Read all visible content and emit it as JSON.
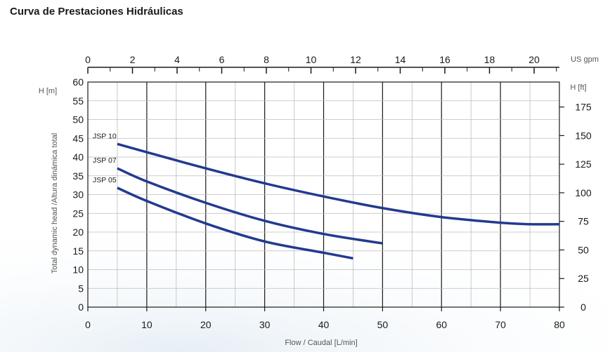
{
  "page": {
    "title": "Curva de Prestaciones Hidráulicas"
  },
  "chart_data": {
    "type": "line",
    "title": "Curva de Prestaciones Hidráulicas",
    "xlabel": "Flow / Caudal [L/min]",
    "ylabel": "Total dynamic head /Altura dinámica total",
    "y_unit_left": "H [m]",
    "y_unit_right": "H [ft]",
    "x_unit_top": "US gpm",
    "xlim": [
      0,
      80
    ],
    "ylim": [
      0,
      60
    ],
    "x_ticks": [
      0,
      10,
      20,
      30,
      40,
      50,
      60,
      70,
      80
    ],
    "y_ticks": [
      0,
      5,
      10,
      15,
      20,
      25,
      30,
      35,
      40,
      45,
      50,
      55,
      60
    ],
    "x2_ticks": [
      0,
      2,
      4,
      6,
      8,
      10,
      12,
      14,
      16,
      18,
      20
    ],
    "y2_ticks": [
      0,
      25,
      50,
      75,
      100,
      125,
      150,
      175
    ],
    "grid": true,
    "series_color": "#233a8f",
    "series": [
      {
        "name": "JSP 10",
        "x": [
          5,
          10,
          20,
          30,
          40,
          50,
          60,
          70,
          75,
          80
        ],
        "y": [
          43.5,
          41.3,
          37.0,
          33.0,
          29.5,
          26.4,
          24.0,
          22.5,
          22.1,
          22.1
        ]
      },
      {
        "name": "JSP 07",
        "x": [
          5,
          10,
          20,
          30,
          40,
          50
        ],
        "y": [
          37.0,
          33.5,
          27.8,
          23.0,
          19.5,
          17.0
        ]
      },
      {
        "name": "JSP 05",
        "x": [
          5,
          10,
          20,
          30,
          40,
          45
        ],
        "y": [
          31.8,
          28.3,
          22.3,
          17.5,
          14.5,
          13.0
        ]
      }
    ]
  }
}
